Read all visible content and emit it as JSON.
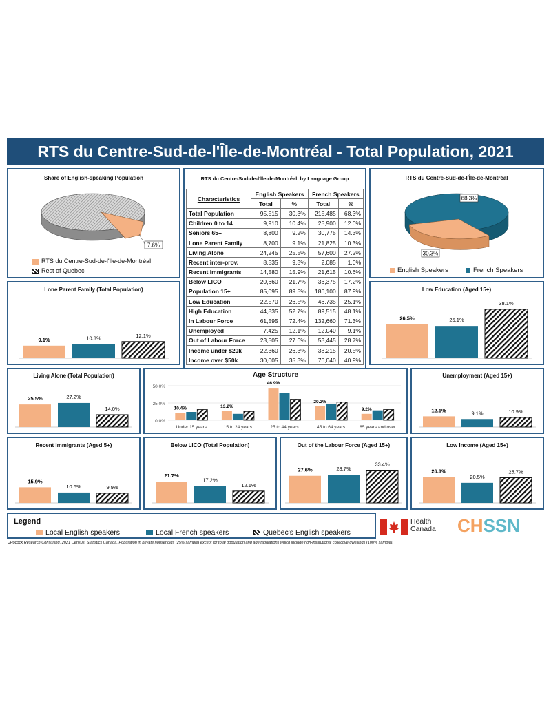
{
  "title": "RTS du Centre-Sud-de-l'Île-de-Montréal - Total Population, 2021",
  "colors": {
    "english": "#f4b183",
    "french": "#1f7391",
    "quebec_english": "hatch",
    "border": "#2f5f8a",
    "header": "#1f4e79"
  },
  "share_pie": {
    "title": "Share of English-speaking Population",
    "label": "7.6%",
    "legend": [
      "RTS du Centre-Sud-de-l'Île-de-Montréal",
      "Rest of Quebec"
    ]
  },
  "lang_pie": {
    "title": "RTS du Centre-Sud-de-l'Île-de-Montréal",
    "label_french": "68.3%",
    "label_english": "30.3%",
    "legend": [
      "English Speakers",
      "French Speakers"
    ]
  },
  "table": {
    "title": "RTS du Centre-Sud-de-l'Île-de-Montréal, by Language Group",
    "col_char": "Characteristics",
    "col_en": "English Speakers",
    "col_fr": "French Speakers",
    "col_total": "Total",
    "col_pct": "%",
    "rows": [
      {
        "c": "Total Population",
        "et": "95,515",
        "ep": "30.3%",
        "ft": "215,485",
        "fp": "68.3%"
      },
      {
        "c": "Children 0 to 14",
        "et": "9,910",
        "ep": "10.4%",
        "ft": "25,900",
        "fp": "12.0%"
      },
      {
        "c": "Seniors 65+",
        "et": "8,800",
        "ep": "9.2%",
        "ft": "30,775",
        "fp": "14.3%"
      },
      {
        "c": "Lone Parent Family",
        "et": "8,700",
        "ep": "9.1%",
        "ft": "21,825",
        "fp": "10.3%"
      },
      {
        "c": "Living Alone",
        "et": "24,245",
        "ep": "25.5%",
        "ft": "57,600",
        "fp": "27.2%"
      },
      {
        "c": "Recent inter-prov.",
        "et": "8,535",
        "ep": "9.3%",
        "ft": "2,085",
        "fp": "1.0%"
      },
      {
        "c": "Recent immigrants",
        "et": "14,580",
        "ep": "15.9%",
        "ft": "21,615",
        "fp": "10.6%"
      },
      {
        "c": "Below LICO",
        "et": "20,660",
        "ep": "21.7%",
        "ft": "36,375",
        "fp": "17.2%"
      },
      {
        "c": "Population 15+",
        "et": "85,095",
        "ep": "89.5%",
        "ft": "186,100",
        "fp": "87.9%"
      },
      {
        "c": "Low Education",
        "et": "22,570",
        "ep": "26.5%",
        "ft": "46,735",
        "fp": "25.1%"
      },
      {
        "c": "High Education",
        "et": "44,835",
        "ep": "52.7%",
        "ft": "89,515",
        "fp": "48.1%"
      },
      {
        "c": "In Labour Force",
        "et": "61,595",
        "ep": "72.4%",
        "ft": "132,660",
        "fp": "71.3%"
      },
      {
        "c": "Unemployed",
        "et": "7,425",
        "ep": "12.1%",
        "ft": "12,040",
        "fp": "9.1%"
      },
      {
        "c": "Out of Labour Force",
        "et": "23,505",
        "ep": "27.6%",
        "ft": "53,445",
        "fp": "28.7%"
      },
      {
        "c": "Income under $20k",
        "et": "22,360",
        "ep": "26.3%",
        "ft": "38,215",
        "fp": "20.5%"
      },
      {
        "c": "Income over $50k",
        "et": "30,005",
        "ep": "35.3%",
        "ft": "76,040",
        "fp": "40.9%"
      }
    ]
  },
  "chart_data": [
    {
      "id": "share",
      "type": "pie",
      "title": "Share of English-speaking Population",
      "categories": [
        "RTS du Centre-Sud-de-l'Île-de-Montréal",
        "Rest of Quebec"
      ],
      "values": [
        7.6,
        92.4
      ]
    },
    {
      "id": "langpie",
      "type": "pie",
      "title": "RTS du Centre-Sud-de-l'Île-de-Montréal",
      "categories": [
        "English Speakers",
        "French Speakers"
      ],
      "values": [
        30.3,
        68.3
      ]
    },
    {
      "id": "lone",
      "type": "bar",
      "title": "Lone Parent Family (Total Population)",
      "values": [
        9.1,
        10.3,
        12.1
      ],
      "labels": [
        "9.1%",
        "10.3%",
        "12.1%"
      ],
      "ylim": [
        0,
        40
      ]
    },
    {
      "id": "lowedu",
      "type": "bar",
      "title": "Low Education (Aged 15+)",
      "values": [
        26.5,
        25.1,
        38.1
      ],
      "labels": [
        "26.5%",
        "25.1%",
        "38.1%"
      ],
      "ylim": [
        0,
        45
      ]
    },
    {
      "id": "alone",
      "type": "bar",
      "title": "Living Alone (Total Population)",
      "values": [
        25.5,
        27.2,
        14.0
      ],
      "labels": [
        "25.5%",
        "27.2%",
        "14.0%"
      ],
      "ylim": [
        0,
        45
      ]
    },
    {
      "id": "age",
      "type": "bar",
      "title": "Age Structure",
      "categories": [
        "Under 15 years",
        "15 to 24 years",
        "25 to 44 years",
        "45 to 64 years",
        "65 years and over"
      ],
      "series": [
        {
          "values": [
            10.4,
            13.2,
            46.9,
            20.2,
            9.2
          ],
          "labels": [
            "10.4%",
            "13.2%",
            "46.9%",
            "20.2%",
            "9.2%"
          ]
        },
        {
          "values": [
            12.0,
            9.2,
            39.5,
            23.8,
            14.3
          ]
        },
        {
          "values": [
            15.5,
            12.7,
            30.5,
            26.2,
            15.5
          ]
        }
      ],
      "yticks": [
        "50.0%",
        "25.0%",
        "0.0%"
      ],
      "ylim": [
        0,
        50
      ]
    },
    {
      "id": "unemp",
      "type": "bar",
      "title": "Unemployment (Aged 15+)",
      "values": [
        12.1,
        9.1,
        10.9
      ],
      "labels": [
        "12.1%",
        "9.1%",
        "10.9%"
      ],
      "ylim": [
        0,
        45
      ]
    },
    {
      "id": "immig",
      "type": "bar",
      "title": "Recent Immigrants (Aged 5+)",
      "values": [
        15.9,
        10.6,
        9.9
      ],
      "labels": [
        "15.9%",
        "10.6%",
        "9.9%"
      ],
      "ylim": [
        0,
        45
      ]
    },
    {
      "id": "lico",
      "type": "bar",
      "title": "Below LICO (Total Population)",
      "values": [
        21.7,
        17.2,
        12.1
      ],
      "labels": [
        "21.7%",
        "17.2%",
        "12.1%"
      ],
      "ylim": [
        0,
        45
      ]
    },
    {
      "id": "olf",
      "type": "bar",
      "title": "Out of the Labour Force (Aged 15+)",
      "values": [
        27.6,
        28.7,
        33.4
      ],
      "labels": [
        "27.6%",
        "28.7%",
        "33.4%"
      ],
      "ylim": [
        0,
        45
      ]
    },
    {
      "id": "lowinc",
      "type": "bar",
      "title": "Low Income (Aged 15+)",
      "values": [
        26.3,
        20.5,
        25.7
      ],
      "labels": [
        "26.3%",
        "20.5%",
        "25.7%"
      ],
      "ylim": [
        0,
        45
      ]
    }
  ],
  "legend": {
    "title": "Legend",
    "items": [
      "Local English speakers",
      "Local French speakers",
      "Quebec's English speakers"
    ]
  },
  "logos": {
    "health_canada": "Health Canada",
    "health": "Health",
    "canada": "Canada",
    "chssn": "CHSSN"
  },
  "footnote": "JPocock Research Consulting. 2021 Census. Statistics Canada. Population in private households (25% sample) except for total population and age tabulations which include non-institutional collective dwellings (100% sample)."
}
